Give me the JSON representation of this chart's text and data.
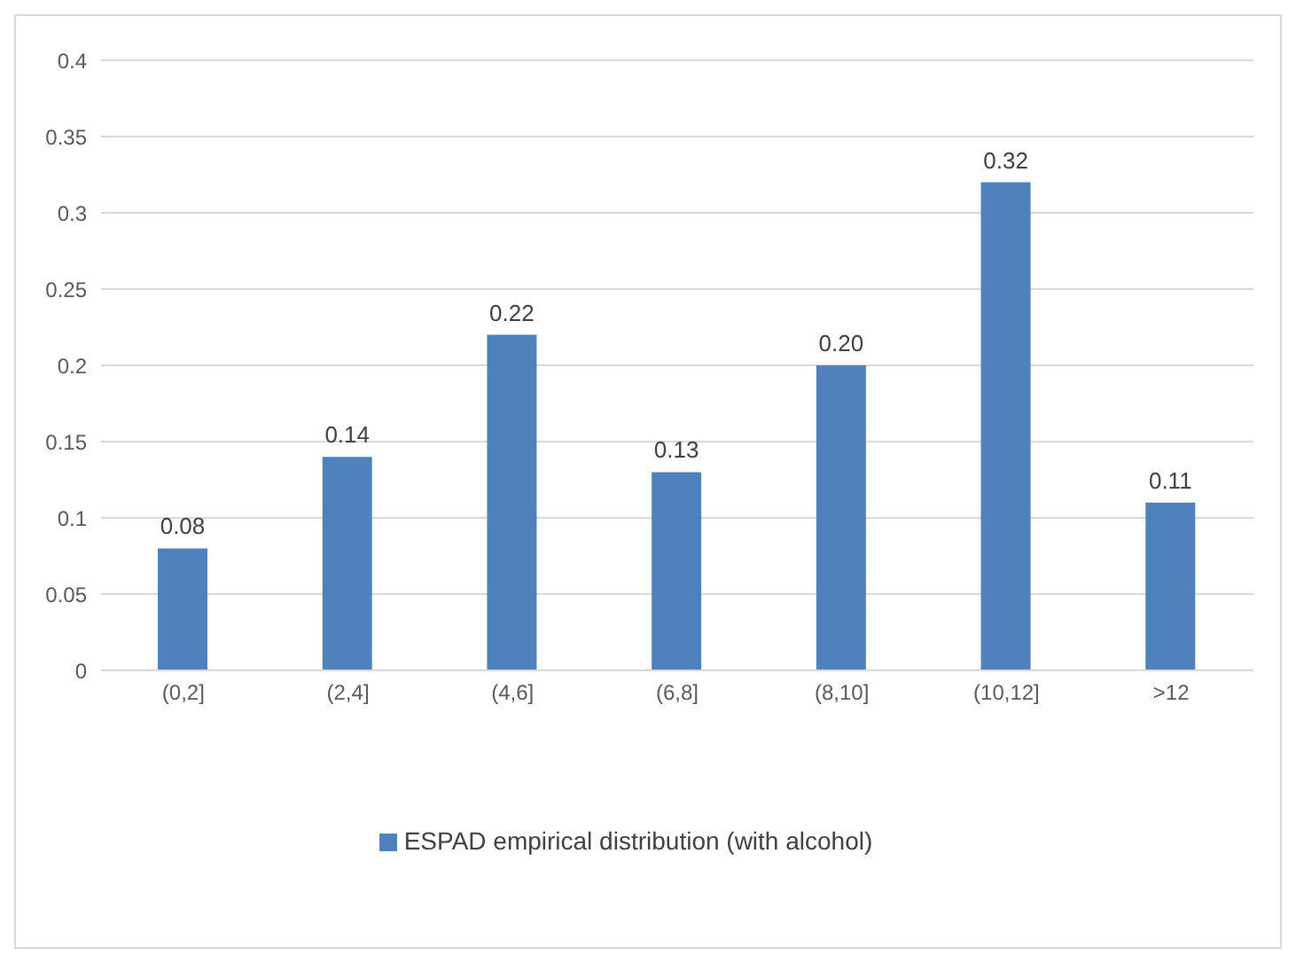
{
  "chart_data": {
    "type": "bar",
    "categories": [
      "(0,2]",
      "(2,4]",
      "(4,6]",
      "(6,8]",
      "(8,10]",
      "(10,12]",
      ">12"
    ],
    "series": [
      {
        "name": "ESPAD empirical distribution (with alcohol)",
        "color": "#4f81bd",
        "values": [
          0.08,
          0.14,
          0.22,
          0.13,
          0.2,
          0.32,
          0.11
        ],
        "value_labels": [
          "0.08",
          "0.14",
          "0.22",
          "0.13",
          "0.20",
          "0.32",
          "0.11"
        ]
      }
    ],
    "ylim": [
      0,
      0.4
    ],
    "yticks": [
      0,
      0.05,
      0.1,
      0.15,
      0.2,
      0.25,
      0.3,
      0.35,
      0.4
    ],
    "grid": "y",
    "legend": "bottom"
  }
}
